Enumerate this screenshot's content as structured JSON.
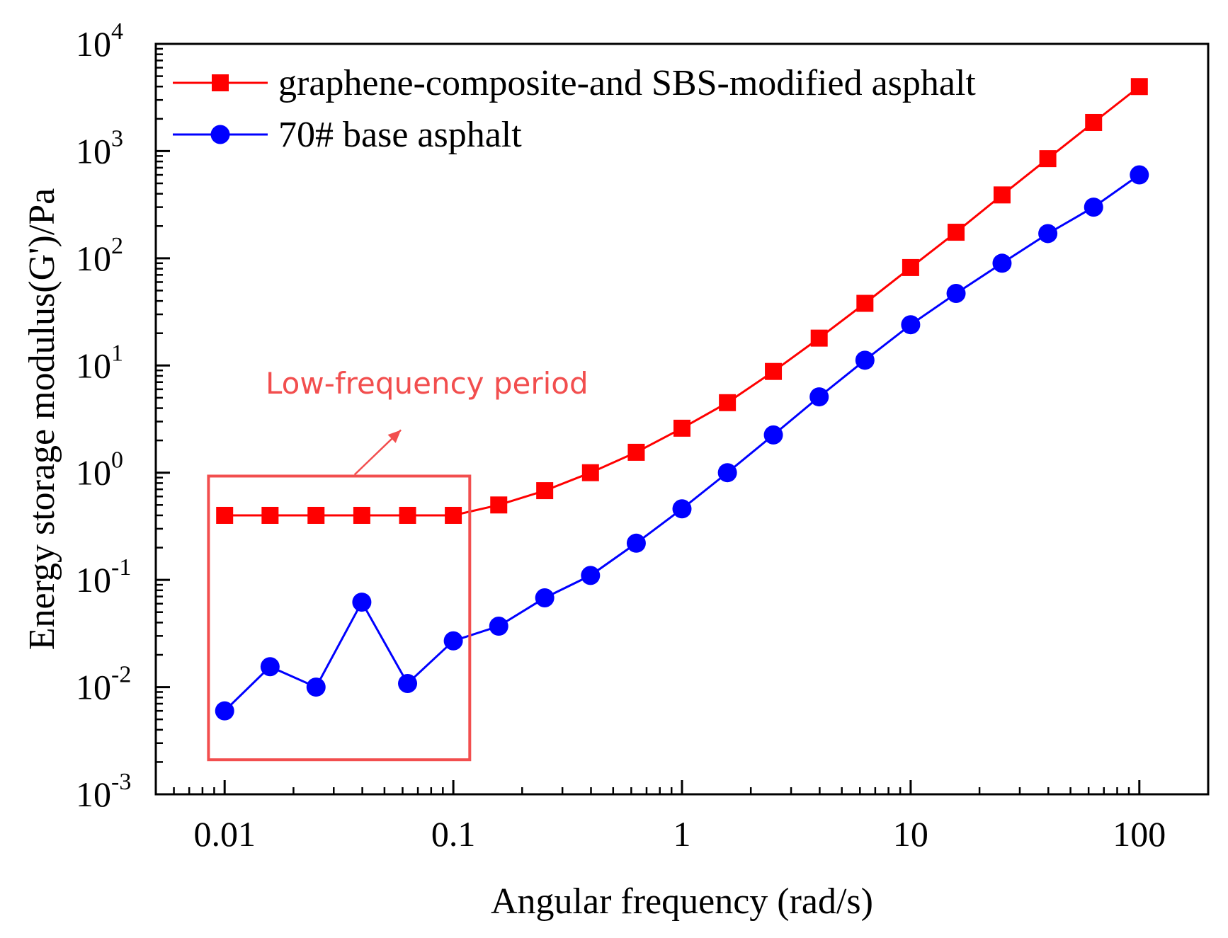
{
  "chart_data": {
    "type": "line",
    "xscale": "log",
    "yscale": "log",
    "xlabel": "Angular frequency (rad/s)",
    "ylabel": "Energy storage modulus(G')/Pa",
    "xlim": [
      0.005,
      200
    ],
    "ylim": [
      0.001,
      10000
    ],
    "x_ticks": [
      {
        "value": 0.01,
        "label": "0.01"
      },
      {
        "value": 0.1,
        "label": "0.1"
      },
      {
        "value": 1,
        "label": "1"
      },
      {
        "value": 10,
        "label": "10"
      },
      {
        "value": 100,
        "label": "100"
      }
    ],
    "y_ticks": [
      {
        "value": 0.001,
        "base": "10",
        "exp": "-3"
      },
      {
        "value": 0.01,
        "base": "10",
        "exp": "-2"
      },
      {
        "value": 0.1,
        "base": "10",
        "exp": "-1"
      },
      {
        "value": 1,
        "base": "10",
        "exp": "0"
      },
      {
        "value": 10,
        "base": "10",
        "exp": "1"
      },
      {
        "value": 100,
        "base": "10",
        "exp": "2"
      },
      {
        "value": 1000,
        "base": "10",
        "exp": "3"
      },
      {
        "value": 10000,
        "base": "10",
        "exp": "4"
      }
    ],
    "x": [
      0.01,
      0.0158,
      0.0251,
      0.0398,
      0.0631,
      0.1,
      0.158,
      0.251,
      0.398,
      0.631,
      1,
      1.58,
      2.51,
      3.98,
      6.31,
      10,
      15.8,
      25.1,
      39.8,
      63.1,
      100
    ],
    "series": [
      {
        "name": "graphene-composite-and SBS-modified asphalt",
        "color": "#ff0000",
        "marker": "square",
        "values": [
          0.4,
          0.4,
          0.4,
          0.4,
          0.4,
          0.4,
          0.5,
          0.68,
          1.0,
          1.55,
          2.6,
          4.5,
          8.8,
          18,
          38,
          82,
          175,
          390,
          850,
          1850,
          4000
        ]
      },
      {
        "name": "70# base asphalt",
        "color": "#0000ff",
        "marker": "circle",
        "values": [
          0.006,
          0.0155,
          0.01,
          0.062,
          0.0108,
          0.027,
          0.037,
          0.068,
          0.11,
          0.22,
          0.46,
          1.0,
          2.25,
          5.1,
          11.2,
          24,
          47,
          90,
          170,
          300,
          600
        ]
      }
    ],
    "annotation": {
      "text": "Low-frequency period",
      "color": "#f24e4e",
      "box_x_range": [
        0.0085,
        0.118
      ],
      "box_y_range": [
        0.0021,
        0.93
      ]
    },
    "legend_position": "top-left"
  }
}
